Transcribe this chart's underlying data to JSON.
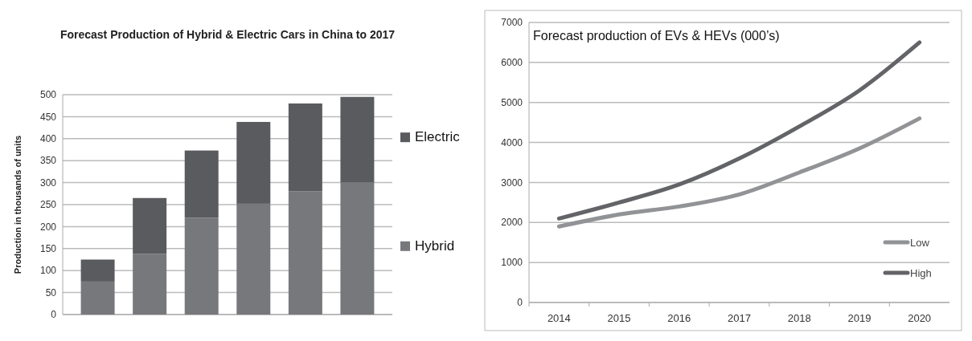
{
  "chart_data": [
    {
      "type": "bar",
      "title": "Forecast Production of Hybrid & Electric Cars in China to 2017",
      "ylabel": "Production in thousands of units",
      "categories": [
        null,
        null,
        null,
        null,
        null,
        null
      ],
      "stacked": true,
      "series": [
        {
          "name": "Hybrid",
          "color": "#77787b",
          "values": [
            75,
            138,
            220,
            252,
            280,
            300
          ]
        },
        {
          "name": "Electric",
          "color": "#5a5b5e",
          "values": [
            50,
            127,
            153,
            186,
            200,
            195
          ]
        }
      ],
      "ylim": [
        0,
        500
      ],
      "yticks": [
        0,
        50,
        100,
        150,
        200,
        250,
        300,
        350,
        400,
        450,
        500
      ],
      "grid": "y",
      "legend": "right"
    },
    {
      "type": "line",
      "title": "Forecast production of EVs & HEVs (000’s)",
      "categories": [
        "2014",
        "2015",
        "2016",
        "2017",
        "2018",
        "2019",
        "2020"
      ],
      "series": [
        {
          "name": "Low",
          "color": "#929396",
          "values": [
            1900,
            2200,
            2400,
            2700,
            3250,
            3850,
            4600
          ]
        },
        {
          "name": "High",
          "color": "#636467",
          "values": [
            2100,
            2500,
            2950,
            3600,
            4400,
            5300,
            6500
          ]
        }
      ],
      "ylim": [
        0,
        7000
      ],
      "yticks": [
        0,
        1000,
        2000,
        3000,
        4000,
        5000,
        6000,
        7000
      ],
      "grid": "y",
      "legend": "bottom right",
      "line_style": "solid"
    }
  ]
}
